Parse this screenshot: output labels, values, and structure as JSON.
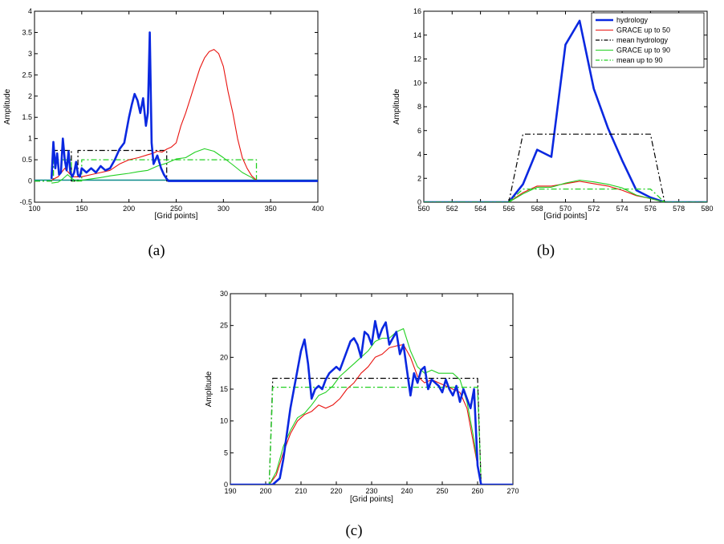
{
  "colors": {
    "hydrology": "#0a28e0",
    "grace50": "#e8120e",
    "mean_hydrology": "#000000",
    "grace90": "#22d022",
    "mean90": "#22d022",
    "baseline": "#0a8a8a"
  },
  "chart_data": [
    {
      "type": "line",
      "caption": "(a)",
      "xlabel": "[Grid points]",
      "ylabel": "Amplitude",
      "xlim": [
        100,
        400
      ],
      "ylim": [
        -0.5,
        4
      ],
      "xticks": [
        100,
        150,
        200,
        250,
        300,
        350,
        400
      ],
      "yticks": [
        -0.5,
        0,
        0.5,
        1,
        1.5,
        2,
        2.5,
        3,
        3.5,
        4
      ],
      "legend": null,
      "series": [
        {
          "name": "baseline",
          "style": "baseline",
          "x": [
            100,
            400
          ],
          "y": [
            0.02,
            0.02
          ]
        },
        {
          "name": "mean hydrology",
          "style": "mean_hydrology",
          "x": [
            100,
            120,
            120,
            139,
            139,
            146,
            146,
            240,
            240,
            400
          ],
          "y": [
            0,
            0,
            0.72,
            0.72,
            0,
            0,
            0.72,
            0.72,
            0,
            0
          ]
        },
        {
          "name": "mean up to 90",
          "style": "mean90",
          "x": [
            100,
            120,
            120,
            139,
            139,
            150,
            150,
            335,
            335,
            400
          ],
          "y": [
            0,
            0,
            0.5,
            0.5,
            0,
            0,
            0.5,
            0.5,
            0,
            0
          ]
        },
        {
          "name": "GRACE up to 90",
          "style": "grace90",
          "x": [
            118,
            125,
            130,
            135,
            140,
            145,
            150,
            160,
            170,
            180,
            190,
            200,
            210,
            220,
            230,
            240,
            250,
            260,
            270,
            280,
            290,
            300,
            310,
            320,
            330,
            335
          ],
          "y": [
            -0.05,
            -0.03,
            0.05,
            0.15,
            0.05,
            0.0,
            0.02,
            0.05,
            0.08,
            0.12,
            0.15,
            0.18,
            0.22,
            0.25,
            0.35,
            0.42,
            0.52,
            0.55,
            0.68,
            0.76,
            0.7,
            0.55,
            0.38,
            0.2,
            0.08,
            0.0
          ]
        },
        {
          "name": "GRACE up to 50",
          "style": "grace50",
          "x": [
            118,
            125,
            132,
            140,
            150,
            160,
            170,
            180,
            190,
            200,
            210,
            220,
            225,
            230,
            235,
            240,
            245,
            250,
            255,
            260,
            265,
            270,
            275,
            280,
            285,
            290,
            295,
            300,
            305,
            310,
            315,
            320,
            325,
            330,
            335
          ],
          "y": [
            0.02,
            0.1,
            0.3,
            0.1,
            0.1,
            0.15,
            0.2,
            0.25,
            0.4,
            0.5,
            0.55,
            0.62,
            0.65,
            0.7,
            0.68,
            0.75,
            0.8,
            0.9,
            1.3,
            1.6,
            1.95,
            2.3,
            2.65,
            2.9,
            3.05,
            3.1,
            3.0,
            2.7,
            2.1,
            1.6,
            1.0,
            0.55,
            0.3,
            0.12,
            0.02
          ]
        },
        {
          "name": "hydrology",
          "style": "hydrology",
          "x": [
            118,
            120,
            122,
            124,
            126,
            128,
            130,
            132,
            134,
            136,
            138,
            140,
            142,
            144,
            146,
            148,
            150,
            155,
            160,
            165,
            170,
            175,
            180,
            185,
            190,
            195,
            200,
            203,
            206,
            209,
            212,
            215,
            218,
            220,
            222,
            224,
            226,
            230,
            234,
            237,
            240,
            242,
            400
          ],
          "y": [
            0.05,
            0.92,
            0.3,
            0.65,
            0.15,
            0.2,
            1.0,
            0.5,
            0.25,
            0.7,
            0.2,
            0.1,
            0.2,
            0.45,
            0.15,
            0.1,
            0.3,
            0.2,
            0.3,
            0.2,
            0.35,
            0.25,
            0.3,
            0.5,
            0.75,
            0.9,
            1.5,
            1.8,
            2.05,
            1.9,
            1.6,
            1.95,
            1.3,
            1.6,
            3.5,
            0.9,
            0.4,
            0.6,
            0.3,
            0.15,
            0.05,
            0.0,
            0.0
          ]
        }
      ]
    },
    {
      "type": "line",
      "caption": "(b)",
      "xlabel": "[Grid points]",
      "ylabel": "Amplitude",
      "xlim": [
        560,
        580
      ],
      "ylim": [
        0,
        16
      ],
      "xticks": [
        560,
        562,
        564,
        566,
        568,
        570,
        572,
        574,
        576,
        578,
        580
      ],
      "yticks": [
        0,
        2,
        4,
        6,
        8,
        10,
        12,
        14,
        16
      ],
      "legend": [
        "hydrology",
        "GRACE up to 50",
        "mean hydrology",
        "GRACE up to 90",
        "mean up to 90"
      ],
      "series": [
        {
          "name": "hydrology",
          "style": "hydrology",
          "x": [
            560,
            566,
            567,
            568,
            569,
            570,
            571,
            572,
            573,
            574,
            575,
            576,
            577,
            580
          ],
          "y": [
            0,
            0,
            1.5,
            4.4,
            3.8,
            13.2,
            15.2,
            9.5,
            6.2,
            3.5,
            1.0,
            0.4,
            0,
            0
          ]
        },
        {
          "name": "GRACE up to 50",
          "style": "grace50",
          "x": [
            560,
            566,
            567,
            568,
            569,
            570,
            571,
            572,
            573,
            574,
            575,
            576,
            577,
            580
          ],
          "y": [
            0,
            0,
            0.8,
            1.35,
            1.35,
            1.55,
            1.75,
            1.55,
            1.35,
            1.0,
            0.55,
            0.3,
            0,
            0
          ]
        },
        {
          "name": "mean hydrology",
          "style": "mean_hydrology",
          "x": [
            560,
            566,
            567,
            576,
            577,
            580
          ],
          "y": [
            0,
            0,
            5.7,
            5.7,
            0,
            0
          ]
        },
        {
          "name": "GRACE up to 90",
          "style": "grace90",
          "x": [
            560,
            566,
            567,
            568,
            569,
            570,
            571,
            572,
            573,
            574,
            575,
            576,
            577,
            580
          ],
          "y": [
            0,
            0,
            0.7,
            1.25,
            1.25,
            1.6,
            1.85,
            1.7,
            1.5,
            1.2,
            0.6,
            0.3,
            0,
            0
          ]
        },
        {
          "name": "mean up to 90",
          "style": "mean90",
          "x": [
            560,
            566,
            567,
            576,
            577,
            580
          ],
          "y": [
            0,
            0,
            1.1,
            1.1,
            0,
            0
          ]
        }
      ]
    },
    {
      "type": "line",
      "caption": "(c)",
      "xlabel": "[Grid points]",
      "ylabel": "Amplitude",
      "xlim": [
        190,
        270
      ],
      "ylim": [
        0,
        30
      ],
      "xticks": [
        190,
        200,
        210,
        220,
        230,
        240,
        250,
        260,
        270
      ],
      "yticks": [
        0,
        5,
        10,
        15,
        20,
        25,
        30
      ],
      "legend": null,
      "series": [
        {
          "name": "mean hydrology",
          "style": "mean_hydrology",
          "x": [
            190,
            201,
            202,
            260,
            261,
            270
          ],
          "y": [
            0,
            0,
            16.7,
            16.7,
            0,
            0
          ]
        },
        {
          "name": "mean up to 90",
          "style": "mean90",
          "x": [
            190,
            201,
            202,
            260,
            261,
            270
          ],
          "y": [
            0,
            0,
            15.3,
            15.3,
            0,
            0
          ]
        },
        {
          "name": "GRACE up to 50",
          "style": "grace50",
          "x": [
            190,
            201,
            203,
            205,
            207,
            209,
            211,
            213,
            215,
            217,
            219,
            221,
            223,
            225,
            227,
            229,
            231,
            233,
            235,
            237,
            239,
            241,
            243,
            245,
            247,
            249,
            251,
            253,
            255,
            257,
            259,
            260,
            261,
            270
          ],
          "y": [
            0,
            0,
            1.5,
            5.0,
            8.0,
            10.0,
            11.0,
            11.5,
            12.5,
            12.0,
            12.5,
            13.5,
            15.0,
            16.0,
            17.5,
            18.5,
            20.0,
            20.5,
            21.5,
            21.8,
            22.0,
            20.0,
            17.0,
            16.0,
            16.5,
            16.0,
            15.5,
            15.0,
            14.5,
            12.0,
            6.0,
            3.0,
            0,
            0
          ]
        },
        {
          "name": "GRACE up to 90",
          "style": "grace90",
          "x": [
            190,
            201,
            203,
            205,
            207,
            209,
            211,
            213,
            215,
            217,
            219,
            221,
            223,
            225,
            227,
            229,
            231,
            233,
            235,
            237,
            239,
            241,
            243,
            245,
            247,
            249,
            251,
            253,
            255,
            257,
            259,
            260,
            261,
            270
          ],
          "y": [
            0,
            0,
            2.0,
            6.0,
            8.5,
            10.5,
            11.2,
            12.5,
            14.0,
            14.5,
            15.5,
            17.0,
            18.0,
            19.0,
            20.0,
            21.0,
            22.5,
            23.0,
            23.0,
            24.0,
            24.5,
            21.0,
            18.5,
            17.5,
            18.0,
            17.5,
            17.5,
            17.5,
            16.5,
            13.0,
            7.0,
            3.0,
            0,
            0
          ]
        },
        {
          "name": "hydrology",
          "style": "hydrology",
          "x": [
            190,
            202,
            203,
            204,
            205,
            206,
            207,
            208,
            209,
            210,
            211,
            212,
            213,
            214,
            215,
            216,
            217,
            218,
            219,
            220,
            221,
            222,
            223,
            224,
            225,
            226,
            227,
            228,
            229,
            230,
            231,
            232,
            233,
            234,
            235,
            236,
            237,
            238,
            239,
            240,
            241,
            242,
            243,
            244,
            245,
            246,
            247,
            248,
            249,
            250,
            251,
            252,
            253,
            254,
            255,
            256,
            257,
            258,
            259,
            260,
            261,
            270
          ],
          "y": [
            0,
            0,
            0.5,
            1.0,
            4.0,
            8.0,
            12.0,
            15.0,
            18.0,
            21.0,
            22.8,
            19.0,
            13.5,
            15.0,
            15.5,
            15.0,
            16.5,
            17.5,
            18.0,
            18.5,
            18.0,
            19.5,
            21.0,
            22.5,
            23.0,
            22.0,
            20.0,
            24.0,
            23.5,
            22.0,
            25.7,
            23.0,
            24.5,
            25.5,
            22.0,
            23.0,
            24.0,
            20.5,
            22.0,
            18.0,
            14.0,
            17.5,
            16.0,
            18.0,
            18.5,
            15.0,
            16.5,
            16.0,
            15.5,
            14.5,
            16.5,
            15.0,
            14.0,
            15.5,
            13.0,
            15.0,
            13.5,
            12.0,
            15.0,
            3.0,
            0,
            0
          ]
        }
      ]
    }
  ]
}
